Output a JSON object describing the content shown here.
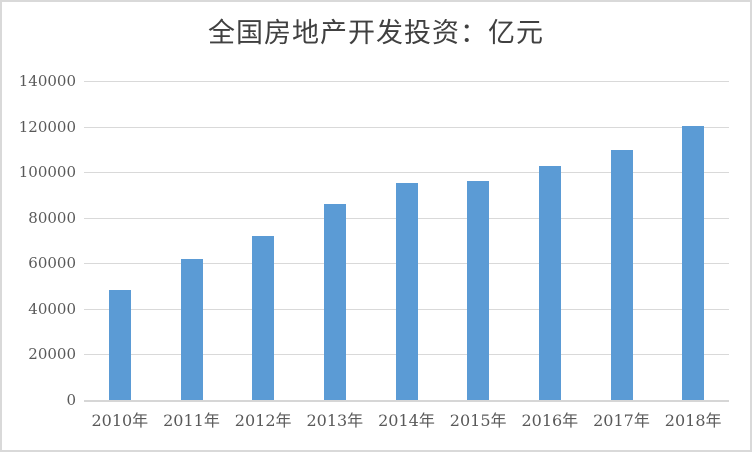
{
  "window": {
    "background": "#FFFFFF",
    "frame_border_color": "#D9D9D9"
  },
  "chart_data": {
    "type": "bar",
    "title": "全国房地产开发投资：亿元",
    "unit": "亿元",
    "categories": [
      "2010年",
      "2011年",
      "2012年",
      "2013年",
      "2014年",
      "2015年",
      "2016年",
      "2017年",
      "2018年"
    ],
    "values": [
      48267,
      61797,
      71804,
      86013,
      95036,
      95979,
      102581,
      109799,
      120264
    ],
    "xlabel": "",
    "ylabel": "",
    "ylim": [
      0,
      140000
    ],
    "ytick_interval": 20000,
    "yticks": [
      0,
      20000,
      40000,
      60000,
      80000,
      100000,
      120000,
      140000
    ],
    "grid": true,
    "legend": false,
    "bar_color": "#5B9BD5",
    "gridline_color": "#D9D9D9",
    "axis_line_color": "#D6D6D6",
    "title_color": "#404040",
    "tick_label_color": "#595959"
  }
}
